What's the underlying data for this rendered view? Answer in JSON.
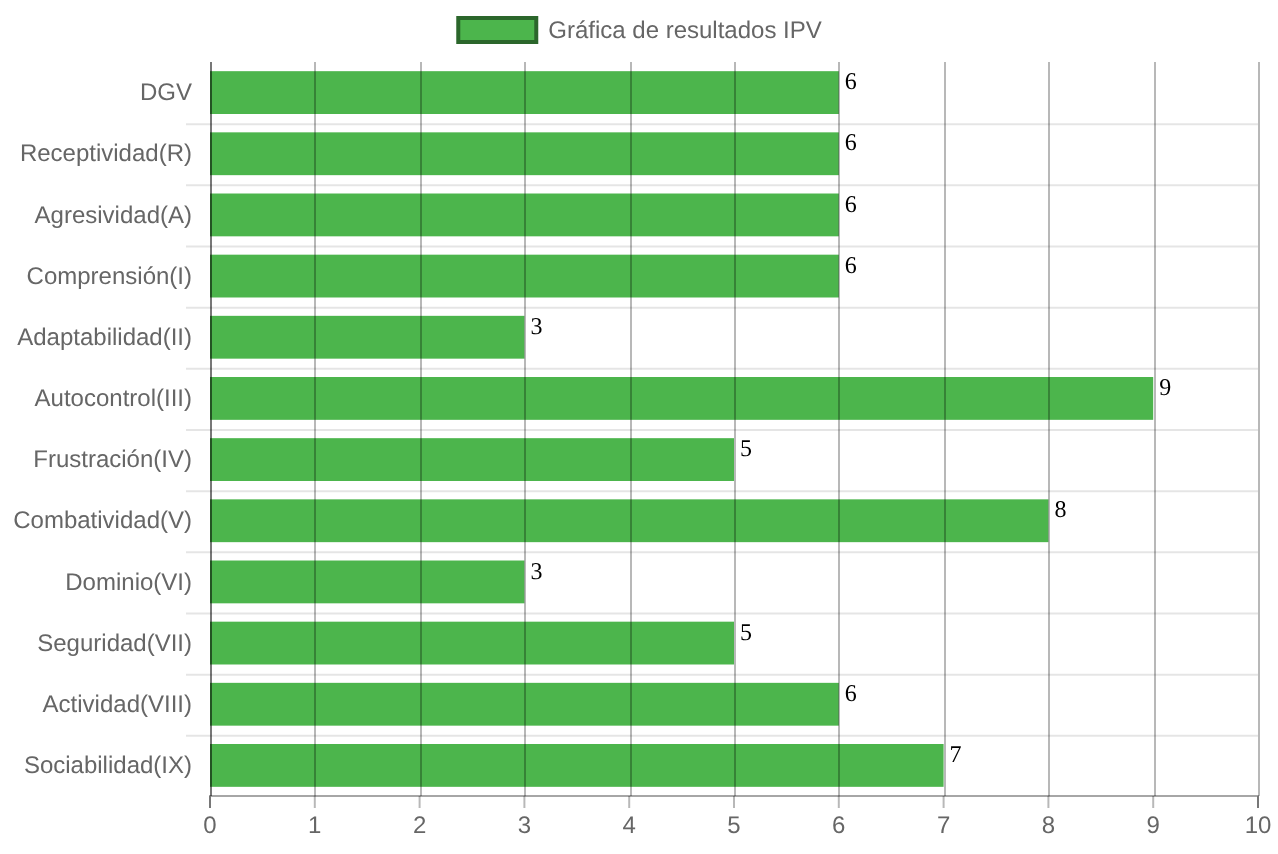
{
  "chart_data": {
    "type": "bar",
    "orientation": "horizontal",
    "categories": [
      "DGV",
      "Receptividad(R)",
      "Agresividad(A)",
      "Comprensión(I)",
      "Adaptabilidad(II)",
      "Autocontrol(III)",
      "Frustración(IV)",
      "Combatividad(V)",
      "Dominio(VI)",
      "Seguridad(VII)",
      "Actividad(VIII)",
      "Sociabilidad(IX)"
    ],
    "series": [
      {
        "name": "Gráfica de resultados IPV",
        "color": "#4cb54c",
        "values": [
          6,
          6,
          6,
          6,
          3,
          9,
          5,
          8,
          3,
          5,
          6,
          7
        ]
      }
    ],
    "xlim": [
      0,
      10
    ],
    "xticks": [
      0,
      1,
      2,
      3,
      4,
      5,
      6,
      7,
      8,
      9,
      10
    ],
    "grid": true,
    "legend": "top",
    "data_labels": true
  }
}
